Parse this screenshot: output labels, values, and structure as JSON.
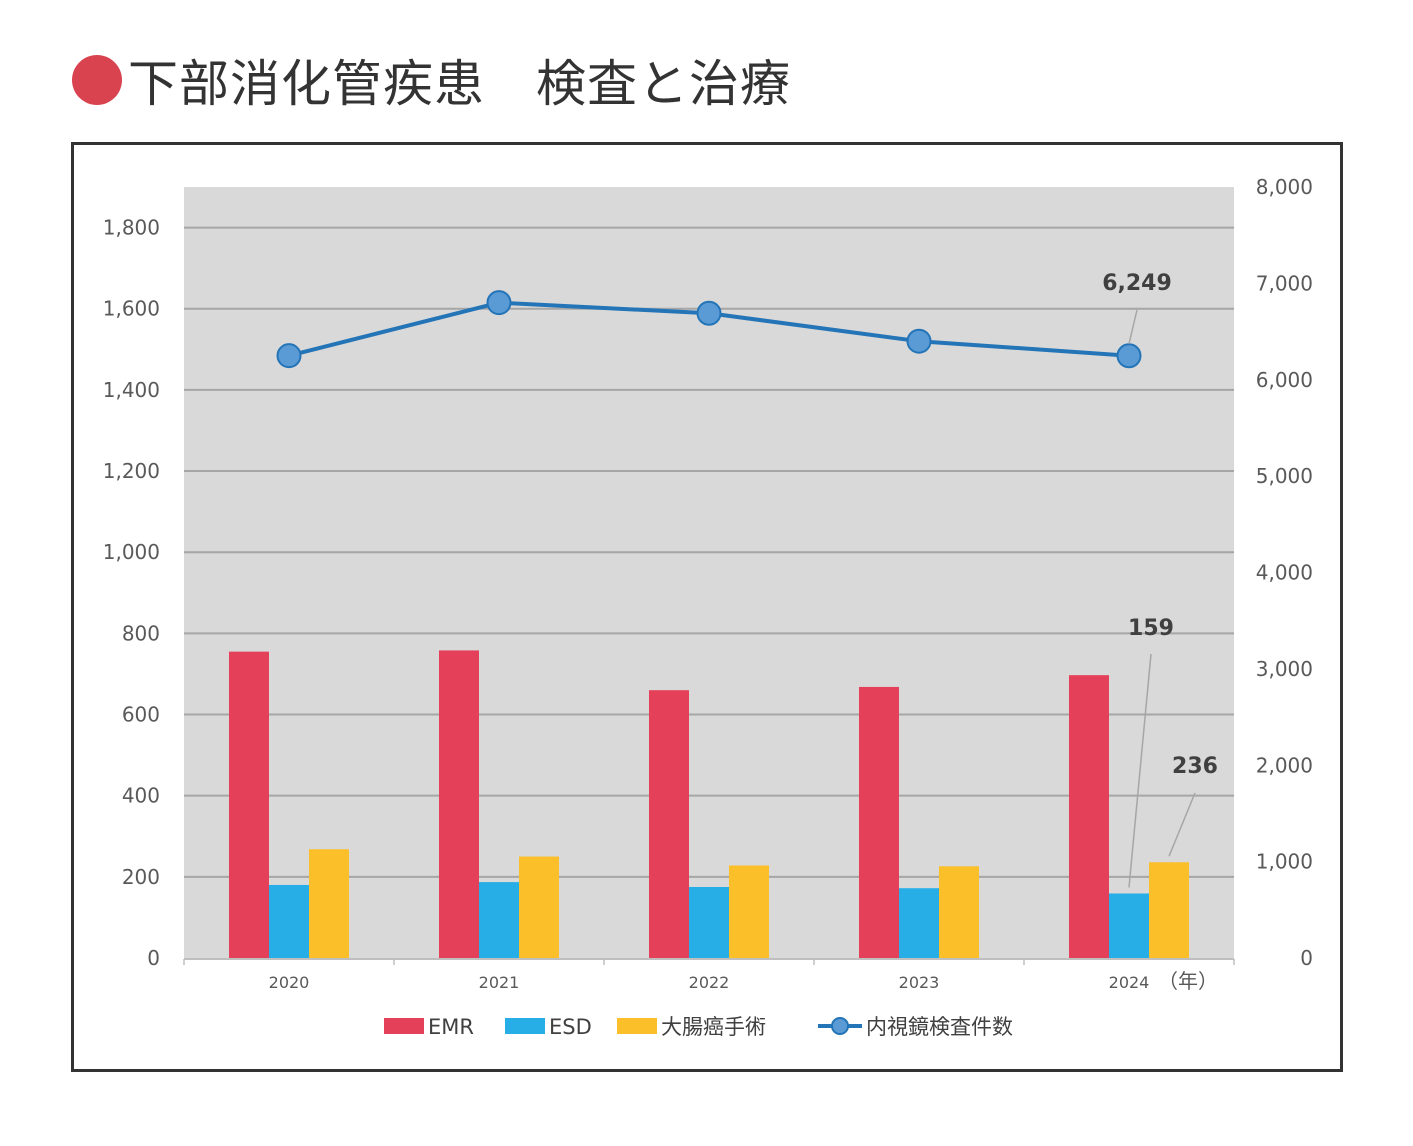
{
  "title": "下部消化管疾患　検査と治療",
  "colors": {
    "title_dot": "#d9434f",
    "EMR": "#e4405a",
    "ESD": "#27aee6",
    "surgery": "#fbbf2a",
    "line": "#2474b8",
    "marker": "#5b9bd5",
    "plot_bg": "#d9d9d9"
  },
  "chart_data": {
    "type": "bar",
    "categories": [
      "2020",
      "2021",
      "2022",
      "2023",
      "2024"
    ],
    "x_unit": "（年）",
    "y_left": {
      "ylim": [
        0,
        1900
      ],
      "ticks": [
        0,
        200,
        400,
        600,
        800,
        1000,
        1200,
        1400,
        1600,
        1800
      ],
      "tick_labels": [
        "0",
        "200",
        "400",
        "600",
        "800",
        "1,000",
        "1,200",
        "1,400",
        "1,600",
        "1,800"
      ]
    },
    "y_right": {
      "ylim": [
        0,
        8000
      ],
      "ticks": [
        0,
        1000,
        2000,
        3000,
        4000,
        5000,
        6000,
        7000,
        8000
      ],
      "tick_labels": [
        "0",
        "1,000",
        "2,000",
        "3,000",
        "4,000",
        "5,000",
        "6,000",
        "7,000",
        "8,000"
      ]
    },
    "grid": true,
    "legend": "bottom",
    "series": [
      {
        "name": "EMR",
        "type": "bar",
        "axis": "left",
        "values": [
          755,
          758,
          660,
          668,
          697
        ]
      },
      {
        "name": "ESD",
        "type": "bar",
        "axis": "left",
        "values": [
          180,
          187,
          175,
          172,
          159
        ]
      },
      {
        "name": "大腸癌手術",
        "type": "bar",
        "axis": "left",
        "values": [
          268,
          250,
          228,
          226,
          236
        ]
      },
      {
        "name": "内視鏡検査件数",
        "type": "line",
        "axis": "right",
        "values": [
          6250,
          6800,
          6690,
          6400,
          6249
        ]
      }
    ],
    "annotations": [
      {
        "series": "内視鏡検査件数",
        "category": "2024",
        "text": "6,249"
      },
      {
        "series": "ESD",
        "category": "2024",
        "text": "159"
      },
      {
        "series": "大腸癌手術",
        "category": "2024",
        "text": "236"
      }
    ]
  }
}
